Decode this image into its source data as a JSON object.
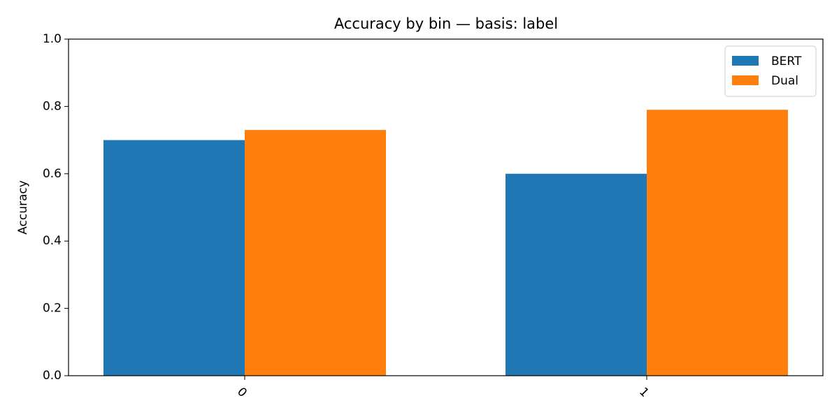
{
  "chart_data": {
    "type": "bar",
    "title": "Accuracy by bin — basis: label",
    "y_label": "Accuracy",
    "categories": [
      "0",
      "1"
    ],
    "series": [
      {
        "name": "BERT",
        "color": "#1f77b4",
        "values": [
          0.7,
          0.6
        ]
      },
      {
        "name": "Dual",
        "color": "#ff7f0e",
        "values": [
          0.73,
          0.79
        ]
      }
    ],
    "ylim": [
      0,
      1
    ],
    "yticks": [
      {
        "value": 0,
        "label": "0.0"
      },
      0.2,
      0.4,
      0.6,
      0.8,
      {
        "value": 1,
        "label": "1.0"
      }
    ],
    "legend": "upper right"
  }
}
